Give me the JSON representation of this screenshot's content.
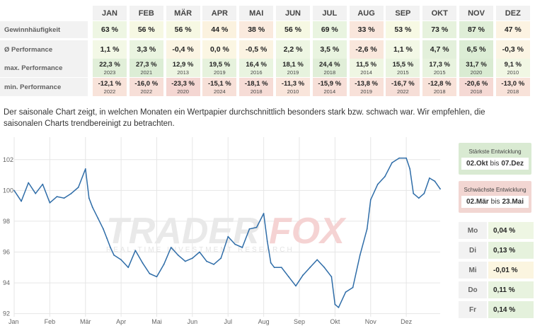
{
  "table": {
    "months": [
      "JAN",
      "FEB",
      "MÄR",
      "APR",
      "MAI",
      "JUN",
      "JUL",
      "AUG",
      "SEP",
      "OKT",
      "NOV",
      "DEZ"
    ],
    "rows": [
      {
        "label": "Gewinnhäufigkeit",
        "values": [
          "63 %",
          "56 %",
          "56 %",
          "44 %",
          "38 %",
          "56 %",
          "69 %",
          "33 %",
          "53 %",
          "73 %",
          "87 %",
          "47 %"
        ],
        "colors": [
          "#eef6e3",
          "#f6f8e3",
          "#f6f8e3",
          "#fbf2df",
          "#faeade",
          "#f6f8e3",
          "#e9f4e0",
          "#f9e6dc",
          "#f7f9e4",
          "#e6f2dd",
          "#dfeed7",
          "#fcf3e2"
        ]
      },
      {
        "label": "Ø Performance",
        "values": [
          "1,1 %",
          "3,3 %",
          "-0,4 %",
          "0,0 %",
          "-0,5 %",
          "2,2 %",
          "3,5 %",
          "-2,6 %",
          "1,1 %",
          "4,7 %",
          "6,5 %",
          "-0,3 %"
        ],
        "colors": [
          "#f3f8e6",
          "#eaf4e0",
          "#fbf4e3",
          "#fbf6e3",
          "#fbf3e2",
          "#eef6e3",
          "#e9f4e0",
          "#f9e7dc",
          "#f3f8e6",
          "#e3f0db",
          "#dcedd5",
          "#fbf4e3"
        ]
      },
      {
        "label": "max. Performance",
        "values": [
          "22,3 %",
          "27,3 %",
          "12,9 %",
          "19,5 %",
          "16,4 %",
          "18,1 %",
          "24,4 %",
          "11,5 %",
          "15,5 %",
          "17,3 %",
          "31,7 %",
          "9,1 %"
        ],
        "years": [
          "2023",
          "2021",
          "2013",
          "2019",
          "2016",
          "2019",
          "2018",
          "2014",
          "2015",
          "2015",
          "2020",
          "2010"
        ],
        "colors": [
          "#e1efd9",
          "#dcedd5",
          "#edf5e2",
          "#e6f2dd",
          "#e9f4e0",
          "#e7f3de",
          "#e0eed8",
          "#eff6e3",
          "#eaf4e0",
          "#e8f3df",
          "#d9ebd2",
          "#f1f7e4"
        ]
      },
      {
        "label": "min. Performance",
        "values": [
          "-12,1 %",
          "-16,0 %",
          "-23,3 %",
          "-15,1 %",
          "-18,1 %",
          "-11,3 %",
          "-15,9 %",
          "-13,8 %",
          "-16,7 %",
          "-12,8 %",
          "-20,6 %",
          "-13,0 %"
        ],
        "years": [
          "2022",
          "2022",
          "2020",
          "2024",
          "2018",
          "2010",
          "2014",
          "2019",
          "2022",
          "2018",
          "2018",
          "2018"
        ],
        "colors": [
          "#f8e3da",
          "#f7dfd8",
          "#f4d6d2",
          "#f7e0d8",
          "#f6dcd6",
          "#f9e5db",
          "#f7dfd8",
          "#f8e1d9",
          "#f6ded7",
          "#f8e2d9",
          "#f5d9d4",
          "#f8e2d9"
        ]
      }
    ]
  },
  "description": "Der saisonale Chart zeigt, in welchen Monaten ein Wertpapier durchschnittlich besonders stark bzw. schwach war. Wir empfehlen, die saisonalen Charts trendbereinigt zu betrachten.",
  "chart_data": {
    "type": "line",
    "x_ticks": [
      "Jan",
      "Feb",
      "Mär",
      "Apr",
      "Mai",
      "Jun",
      "Jul",
      "Aug",
      "Sep",
      "Okt",
      "Nov",
      "Dez"
    ],
    "y_ticks": [
      92,
      94,
      96,
      98,
      100,
      102
    ],
    "ylim": [
      91.8,
      103
    ],
    "color": "#2f6da8",
    "x": [
      0,
      0.2,
      0.4,
      0.6,
      0.8,
      1,
      1.2,
      1.4,
      1.6,
      1.8,
      2,
      2.1,
      2.2,
      2.35,
      2.5,
      2.6,
      2.7,
      2.8,
      3,
      3.2,
      3.4,
      3.6,
      3.8,
      4,
      4.2,
      4.4,
      4.6,
      4.8,
      5,
      5.2,
      5.4,
      5.6,
      5.8,
      6,
      6.2,
      6.4,
      6.6,
      6.8,
      7,
      7.1,
      7.2,
      7.3,
      7.5,
      7.7,
      7.9,
      8.1,
      8.3,
      8.5,
      8.7,
      8.9,
      9,
      9.1,
      9.3,
      9.5,
      9.7,
      9.9,
      10,
      10.2,
      10.4,
      10.6,
      10.8,
      11,
      11.1,
      11.2,
      11.35,
      11.5,
      11.65,
      11.8,
      11.95
    ],
    "values": [
      100,
      99.3,
      100.5,
      99.8,
      100.4,
      99.2,
      99.6,
      99.5,
      99.8,
      100.2,
      101.4,
      99.5,
      98.9,
      98.2,
      97.5,
      96.9,
      96.3,
      95.8,
      95.5,
      95.0,
      96.1,
      95.3,
      94.6,
      94.4,
      95.2,
      96.3,
      95.8,
      95.4,
      95.6,
      96.0,
      95.4,
      95.2,
      95.6,
      97.0,
      96.5,
      96.3,
      97.5,
      97.6,
      98.5,
      96.7,
      95.3,
      95.0,
      95.0,
      94.4,
      93.8,
      94.5,
      95.0,
      95.5,
      95.0,
      94.4,
      92.6,
      92.4,
      93.4,
      93.7,
      95.8,
      97.5,
      99.4,
      100.4,
      100.9,
      101.8,
      102.1,
      102.1,
      101.4,
      99.8,
      99.5,
      99.8,
      100.8,
      100.6,
      100.1
    ]
  },
  "watermark": {
    "brand_left": "TRADER",
    "brand_right": "FOX",
    "tagline": "REAL-TIME INVESTMENT RESEARCH"
  },
  "panel": {
    "strongest": {
      "title": "Stärkste Entwicklung",
      "from": "02.Okt",
      "sep": "bis",
      "to": "07.Dez"
    },
    "weakest": {
      "title": "Schwächste Entwicklung",
      "from": "02.Mär",
      "sep": "bis",
      "to": "23.Mai"
    },
    "weekdays": [
      {
        "day": "Mo",
        "value": "0,04 %"
      },
      {
        "day": "Di",
        "value": "0,13 %"
      },
      {
        "day": "Mi",
        "value": "-0,01 %"
      },
      {
        "day": "Do",
        "value": "0,11 %"
      },
      {
        "day": "Fr",
        "value": "0,14 %"
      }
    ],
    "colors": {
      "strongest_bg": "#d9ead2",
      "weakest_bg": "#f2d6d2",
      "weekday_bgs": [
        "#eef6e3",
        "#e6f2dd",
        "#fbf5e0",
        "#e8f3df",
        "#e4f1dc"
      ]
    }
  }
}
